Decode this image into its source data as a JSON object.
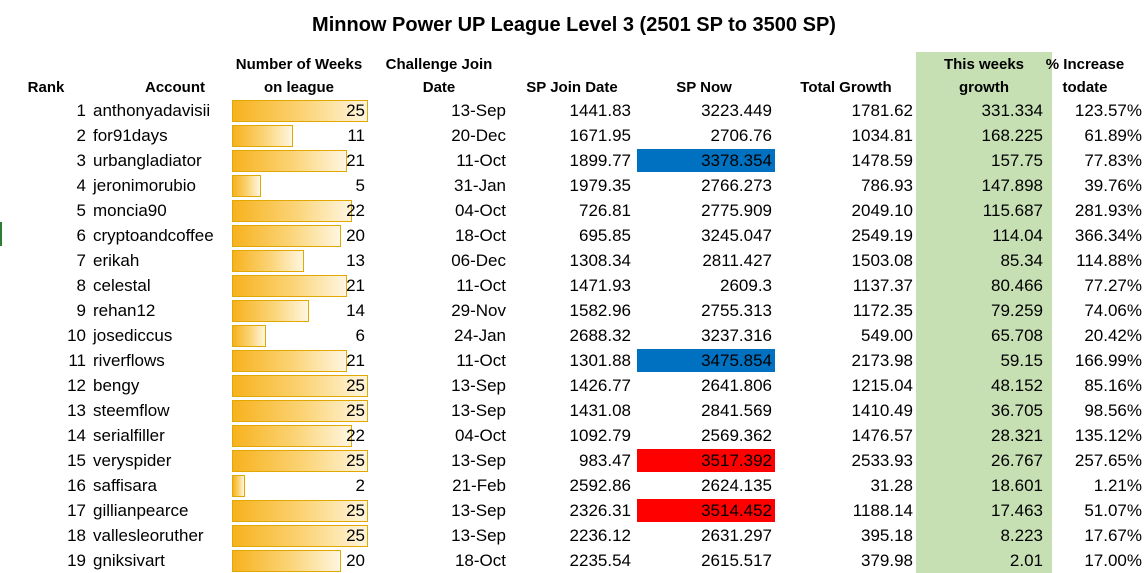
{
  "title": "Minnow Power UP League Level 3 (2501 SP to 3500 SP)",
  "headers": {
    "rank": "Rank",
    "account": "Account",
    "weeks_line1": "Number of Weeks",
    "weeks_line2": "on league",
    "join_line1": "Challenge Join",
    "join_line2": "Date",
    "sp_join": "SP Join Date",
    "sp_now": "SP Now",
    "total_growth": "Total Growth",
    "week_growth_line1": "This weeks",
    "week_growth_line2": "growth",
    "increase_line1": "% Increase",
    "increase_line2": "todate"
  },
  "max_weeks": 25,
  "colors": {
    "green_column": "#c6e0b4",
    "blue_highlight": "#0070c0",
    "red_highlight": "#ff0000",
    "bar": "#f7b21e"
  },
  "rows": [
    {
      "rank": "1",
      "account": "anthonyadavisii",
      "weeks": "25",
      "join_date": "13-Sep",
      "sp_join": "1441.83",
      "sp_now": "3223.449",
      "total_growth": "1781.62",
      "week_growth": "331.334",
      "increase": "123.57%",
      "highlight": ""
    },
    {
      "rank": "2",
      "account": "for91days",
      "weeks": "11",
      "join_date": "20-Dec",
      "sp_join": "1671.95",
      "sp_now": "2706.76",
      "total_growth": "1034.81",
      "week_growth": "168.225",
      "increase": "61.89%",
      "highlight": ""
    },
    {
      "rank": "3",
      "account": "urbangladiator",
      "weeks": "21",
      "join_date": "11-Oct",
      "sp_join": "1899.77",
      "sp_now": "3378.354",
      "total_growth": "1478.59",
      "week_growth": "157.75",
      "increase": "77.83%",
      "highlight": "blue"
    },
    {
      "rank": "4",
      "account": "jeronimorubio",
      "weeks": "5",
      "join_date": "31-Jan",
      "sp_join": "1979.35",
      "sp_now": "2766.273",
      "total_growth": "786.93",
      "week_growth": "147.898",
      "increase": "39.76%",
      "highlight": ""
    },
    {
      "rank": "5",
      "account": "moncia90",
      "weeks": "22",
      "join_date": "04-Oct",
      "sp_join": "726.81",
      "sp_now": "2775.909",
      "total_growth": "2049.10",
      "week_growth": "115.687",
      "increase": "281.93%",
      "highlight": ""
    },
    {
      "rank": "6",
      "account": "cryptoandcoffee",
      "weeks": "20",
      "join_date": "18-Oct",
      "sp_join": "695.85",
      "sp_now": "3245.047",
      "total_growth": "2549.19",
      "week_growth": "114.04",
      "increase": "366.34%",
      "highlight": ""
    },
    {
      "rank": "7",
      "account": "erikah",
      "weeks": "13",
      "join_date": "06-Dec",
      "sp_join": "1308.34",
      "sp_now": "2811.427",
      "total_growth": "1503.08",
      "week_growth": "85.34",
      "increase": "114.88%",
      "highlight": ""
    },
    {
      "rank": "8",
      "account": "celestal",
      "weeks": "21",
      "join_date": "11-Oct",
      "sp_join": "1471.93",
      "sp_now": "2609.3",
      "total_growth": "1137.37",
      "week_growth": "80.466",
      "increase": "77.27%",
      "highlight": ""
    },
    {
      "rank": "9",
      "account": "rehan12",
      "weeks": "14",
      "join_date": "29-Nov",
      "sp_join": "1582.96",
      "sp_now": "2755.313",
      "total_growth": "1172.35",
      "week_growth": "79.259",
      "increase": "74.06%",
      "highlight": ""
    },
    {
      "rank": "10",
      "account": "josediccus",
      "weeks": "6",
      "join_date": "24-Jan",
      "sp_join": "2688.32",
      "sp_now": "3237.316",
      "total_growth": "549.00",
      "week_growth": "65.708",
      "increase": "20.42%",
      "highlight": ""
    },
    {
      "rank": "11",
      "account": "riverflows",
      "weeks": "21",
      "join_date": "11-Oct",
      "sp_join": "1301.88",
      "sp_now": "3475.854",
      "total_growth": "2173.98",
      "week_growth": "59.15",
      "increase": "166.99%",
      "highlight": "blue"
    },
    {
      "rank": "12",
      "account": "bengy",
      "weeks": "25",
      "join_date": "13-Sep",
      "sp_join": "1426.77",
      "sp_now": "2641.806",
      "total_growth": "1215.04",
      "week_growth": "48.152",
      "increase": "85.16%",
      "highlight": ""
    },
    {
      "rank": "13",
      "account": "steemflow",
      "weeks": "25",
      "join_date": "13-Sep",
      "sp_join": "1431.08",
      "sp_now": "2841.569",
      "total_growth": "1410.49",
      "week_growth": "36.705",
      "increase": "98.56%",
      "highlight": ""
    },
    {
      "rank": "14",
      "account": "serialfiller",
      "weeks": "22",
      "join_date": "04-Oct",
      "sp_join": "1092.79",
      "sp_now": "2569.362",
      "total_growth": "1476.57",
      "week_growth": "28.321",
      "increase": "135.12%",
      "highlight": ""
    },
    {
      "rank": "15",
      "account": "veryspider",
      "weeks": "25",
      "join_date": "13-Sep",
      "sp_join": "983.47",
      "sp_now": "3517.392",
      "total_growth": "2533.93",
      "week_growth": "26.767",
      "increase": "257.65%",
      "highlight": "red"
    },
    {
      "rank": "16",
      "account": "saffisara",
      "weeks": "2",
      "join_date": "21-Feb",
      "sp_join": "2592.86",
      "sp_now": "2624.135",
      "total_growth": "31.28",
      "week_growth": "18.601",
      "increase": "1.21%",
      "highlight": ""
    },
    {
      "rank": "17",
      "account": "gillianpearce",
      "weeks": "25",
      "join_date": "13-Sep",
      "sp_join": "2326.31",
      "sp_now": "3514.452",
      "total_growth": "1188.14",
      "week_growth": "17.463",
      "increase": "51.07%",
      "highlight": "red"
    },
    {
      "rank": "18",
      "account": "vallesleoruther",
      "weeks": "25",
      "join_date": "13-Sep",
      "sp_join": "2236.12",
      "sp_now": "2631.297",
      "total_growth": "395.18",
      "week_growth": "8.223",
      "increase": "17.67%",
      "highlight": ""
    },
    {
      "rank": "19",
      "account": "gniksivart",
      "weeks": "20",
      "join_date": "18-Oct",
      "sp_join": "2235.54",
      "sp_now": "2615.517",
      "total_growth": "379.98",
      "week_growth": "2.01",
      "increase": "17.00%",
      "highlight": ""
    }
  ]
}
